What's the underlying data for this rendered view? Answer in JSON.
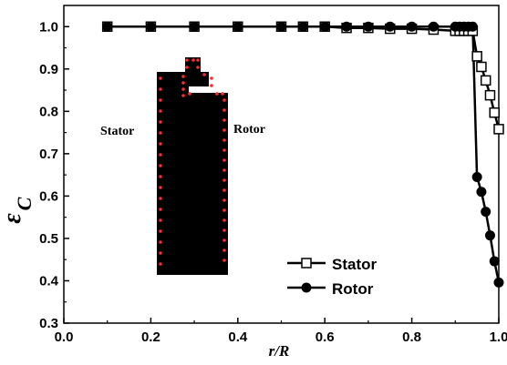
{
  "chart_data": {
    "type": "line",
    "xlabel": "r/R",
    "ylabel": "εC",
    "ylabel_main": "ε",
    "ylabel_sub": "C",
    "xlim": [
      0.0,
      1.0
    ],
    "ylim": [
      0.3,
      1.05
    ],
    "x_ticks": [
      "0.0",
      "0.2",
      "0.4",
      "0.6",
      "0.8",
      "1.0"
    ],
    "y_ticks": [
      "0.3",
      "0.4",
      "0.5",
      "0.6",
      "0.7",
      "0.8",
      "0.9",
      "1.0"
    ],
    "grid": false,
    "legend_position": "bottom-right",
    "series": [
      {
        "name": "Stator",
        "marker": "open-square",
        "x": [
          0.1,
          0.2,
          0.3,
          0.4,
          0.5,
          0.55,
          0.6,
          0.65,
          0.7,
          0.75,
          0.8,
          0.85,
          0.9,
          0.91,
          0.92,
          0.93,
          0.94,
          0.95,
          0.96,
          0.97,
          0.98,
          0.99,
          1.0
        ],
        "y": [
          1.0,
          1.0,
          1.0,
          1.0,
          1.0,
          1.0,
          1.0,
          0.997,
          0.997,
          0.995,
          0.995,
          0.993,
          0.99,
          0.99,
          0.99,
          0.99,
          0.99,
          0.93,
          0.905,
          0.873,
          0.838,
          0.797,
          0.758
        ]
      },
      {
        "name": "Rotor",
        "marker": "filled-circle",
        "x": [
          0.1,
          0.2,
          0.3,
          0.4,
          0.5,
          0.55,
          0.6,
          0.65,
          0.7,
          0.75,
          0.8,
          0.85,
          0.9,
          0.91,
          0.92,
          0.93,
          0.94,
          0.95,
          0.96,
          0.97,
          0.98,
          0.99,
          1.0
        ],
        "y": [
          1.0,
          1.0,
          1.0,
          1.0,
          1.0,
          1.0,
          1.0,
          1.0,
          1.0,
          1.0,
          1.0,
          1.0,
          1.0,
          1.0,
          1.0,
          1.0,
          1.0,
          0.645,
          0.61,
          0.563,
          0.507,
          0.446,
          0.396
        ]
      }
    ],
    "inset": {
      "labels": {
        "left": "Stator",
        "right": "Rotor"
      }
    }
  }
}
